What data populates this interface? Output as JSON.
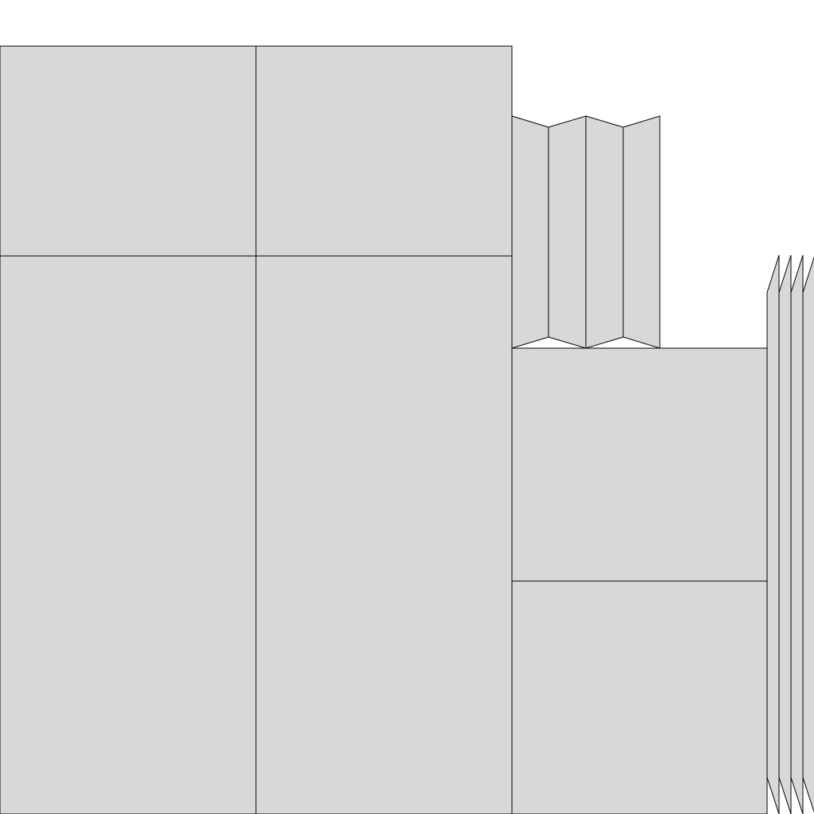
{
  "colors": {
    "panel_fill": "#d8d8d8",
    "panel_stroke": "#000000",
    "background": "#ffffff"
  }
}
